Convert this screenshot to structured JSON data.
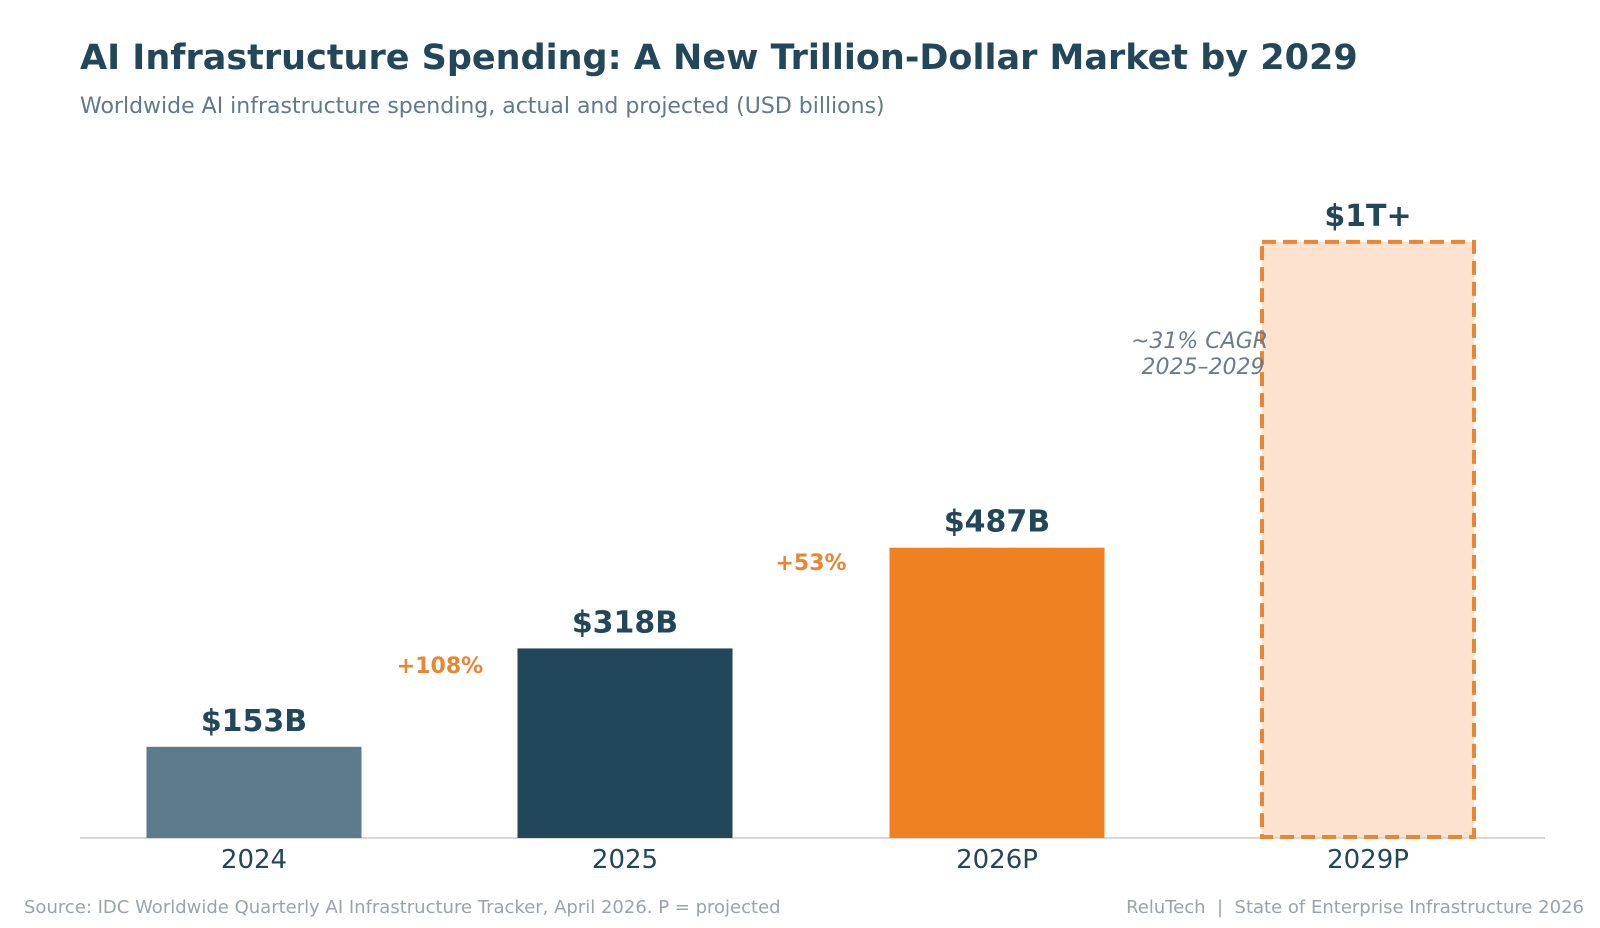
{
  "header": {
    "title": "AI Infrastructure Spending: A New Trillion-Dollar Market by 2029",
    "subtitle": "Worldwide AI infrastructure spending, actual and projected (USD billions)"
  },
  "chart_data": {
    "type": "bar",
    "categories": [
      "2024",
      "2025",
      "2026P",
      "2029P"
    ],
    "values": [
      153,
      318,
      487,
      1000
    ],
    "value_labels": [
      "$153B",
      "$318B",
      "$487B",
      "$1T+"
    ],
    "projected": [
      false,
      false,
      true,
      true
    ],
    "growth_labels": [
      {
        "between": [
          0,
          1
        ],
        "text": "+108%"
      },
      {
        "between": [
          1,
          2
        ],
        "text": "+53%"
      }
    ],
    "annotation": {
      "line1": "~31% CAGR",
      "line2": "2025–2029"
    },
    "ylim": [
      0,
      1000
    ],
    "grid": false,
    "colors": {
      "bar_2024": "#5b7a8c",
      "bar_2025": "#22465a",
      "bar_2026P": "#f08122",
      "bar_2029P_fill": "#fde3cf",
      "bar_2029P_stroke": "#ea8533",
      "growth_label": "#ea8533",
      "value_label": "#22465a",
      "annotation": "#6b7b88",
      "axis_label": "#22465a",
      "baseline": "#cccccc"
    }
  },
  "footer": {
    "source": "Source: IDC Worldwide Quarterly AI Infrastructure Tracker, April 2026. P = projected",
    "credit": "ReluTech  |  State of Enterprise Infrastructure 2026"
  }
}
